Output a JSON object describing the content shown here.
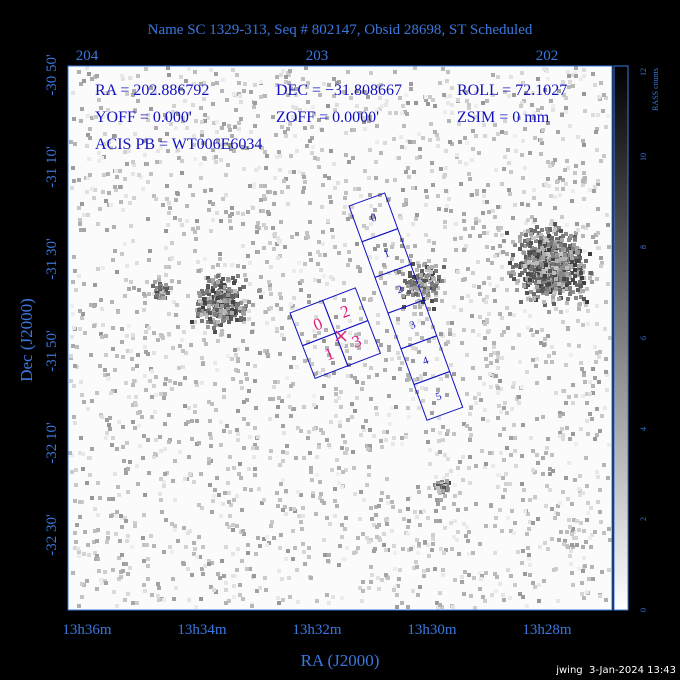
{
  "header": {
    "title": "Name SC 1329-313, Seq # 802147, Obsid 28698, ST Scheduled"
  },
  "top_axis": {
    "labels": [
      "204",
      "203",
      "202"
    ]
  },
  "bottom_axis": {
    "labels": [
      "13h36m",
      "13h34m",
      "13h32m",
      "13h30m",
      "13h28m"
    ],
    "title": "RA (J2000)"
  },
  "left_axis": {
    "labels": [
      "-30 50'",
      "-31 10'",
      "-31 30'",
      "-31 50'",
      "-32 10'",
      "-32 30'"
    ],
    "title": "Dec (J2000)"
  },
  "info": {
    "ra": "RA = 202.886792",
    "dec": "DEC = −31.808667",
    "roll": "ROLL = 72.1027",
    "yoff": "YOFF =   0.000'",
    "zoff": "ZOFF =  0.0000'",
    "zsim": "ZSIM = 0 mm",
    "acis_pb": "ACIS PB = WT006E6034"
  },
  "colorbar": {
    "title": "RASS counts",
    "labels": [
      "0",
      "2",
      "4",
      "6",
      "8",
      "10",
      "12"
    ]
  },
  "chips": {
    "acis_s": [
      "0",
      "1",
      "2",
      "3",
      "4",
      "5"
    ],
    "acis_i": [
      "0",
      "2",
      "1",
      "3"
    ]
  },
  "footer": "jwing  3-Jan-2024 13:43"
}
